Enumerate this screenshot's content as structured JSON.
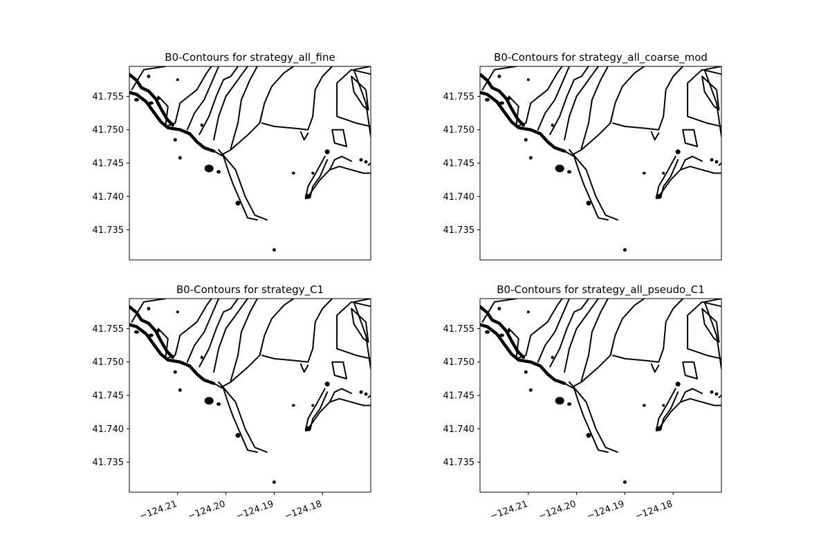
{
  "chart_data": {
    "type": "contour",
    "suptitle_note": "",
    "xlim": [
      -124.22,
      -124.17
    ],
    "ylim": [
      41.7305,
      41.7595
    ],
    "xticks": [
      -124.21,
      -124.2,
      -124.19,
      -124.18
    ],
    "xtick_labels": [
      "−124.21",
      "−124.20",
      "−124.19",
      "−124.18"
    ],
    "yticks": [
      41.735,
      41.74,
      41.745,
      41.75,
      41.755
    ],
    "ytick_labels": [
      "41.735",
      "41.740",
      "41.745",
      "41.750",
      "41.755"
    ],
    "panels": [
      {
        "title": "B0-Contours for  strategy_all_fine",
        "show_xticks": false
      },
      {
        "title": "B0-Contours for  strategy_all_coarse_mod",
        "show_xticks": false
      },
      {
        "title": "B0-Contours for  strategy_C1",
        "show_xticks": true
      },
      {
        "title": "B0-Contours for  strategy_all_pseudo_C1",
        "show_xticks": true
      }
    ],
    "contours": [
      {
        "style": "heavy",
        "points": [
          [
            -124.22,
            41.7556
          ],
          [
            -124.2185,
            41.7553
          ],
          [
            -124.2165,
            41.7542
          ],
          [
            -124.215,
            41.7527
          ],
          [
            -124.2135,
            41.7512
          ],
          [
            -124.212,
            41.7503
          ],
          [
            -124.2095,
            41.75
          ],
          [
            -124.2075,
            41.7494
          ],
          [
            -124.206,
            41.7482
          ],
          [
            -124.2045,
            41.7473
          ],
          [
            -124.2025,
            41.7468
          ]
        ]
      },
      {
        "style": "heavy",
        "points": [
          [
            -124.22,
            41.7583
          ],
          [
            -124.2185,
            41.7574
          ],
          [
            -124.2175,
            41.7563
          ],
          [
            -124.216,
            41.7558
          ],
          [
            -124.2145,
            41.7546
          ],
          [
            -124.2135,
            41.7532
          ],
          [
            -124.2122,
            41.7516
          ],
          [
            -124.211,
            41.7507
          ]
        ]
      },
      {
        "style": "normal",
        "points": [
          [
            -124.2025,
            41.7468
          ],
          [
            -124.2005,
            41.746
          ],
          [
            -124.1995,
            41.7438
          ],
          [
            -124.1985,
            41.7418
          ],
          [
            -124.1955,
            41.7368
          ],
          [
            -124.1935,
            41.7365
          ]
        ]
      },
      {
        "style": "normal",
        "points": [
          [
            -124.2015,
            41.747
          ],
          [
            -124.198,
            41.744
          ],
          [
            -124.196,
            41.74
          ],
          [
            -124.194,
            41.7372
          ],
          [
            -124.1915,
            41.7365
          ]
        ]
      },
      {
        "style": "normal",
        "points": [
          [
            -124.201,
            41.7462
          ],
          [
            -124.199,
            41.747
          ],
          [
            -124.1955,
            41.7492
          ],
          [
            -124.193,
            41.751
          ],
          [
            -124.1925,
            41.7525
          ]
        ]
      },
      {
        "style": "normal",
        "points": [
          [
            -124.2195,
            41.756
          ],
          [
            -124.217,
            41.759
          ],
          [
            -124.2125,
            41.7595
          ]
        ]
      },
      {
        "style": "normal",
        "points": [
          [
            -124.214,
            41.755
          ],
          [
            -124.212,
            41.7535
          ],
          [
            -124.2125,
            41.7505
          ],
          [
            -124.2105,
            41.751
          ],
          [
            -124.2095,
            41.754
          ],
          [
            -124.206,
            41.756
          ],
          [
            -124.204,
            41.7585
          ],
          [
            -124.203,
            41.7595
          ]
        ]
      },
      {
        "style": "normal",
        "points": [
          [
            -124.208,
            41.75
          ],
          [
            -124.2065,
            41.7525
          ],
          [
            -124.2045,
            41.7545
          ],
          [
            -124.203,
            41.757
          ],
          [
            -124.2015,
            41.7595
          ]
        ]
      },
      {
        "style": "normal",
        "points": [
          [
            -124.2055,
            41.7493
          ],
          [
            -124.2035,
            41.752
          ],
          [
            -124.202,
            41.755
          ],
          [
            -124.2005,
            41.7575
          ],
          [
            -124.199,
            41.758
          ],
          [
            -124.1975,
            41.7595
          ]
        ]
      },
      {
        "style": "normal",
        "points": [
          [
            -124.2025,
            41.7485
          ],
          [
            -124.2015,
            41.752
          ],
          [
            -124.2,
            41.755
          ],
          [
            -124.1985,
            41.7565
          ],
          [
            -124.1965,
            41.7585
          ],
          [
            -124.1955,
            41.7595
          ]
        ]
      },
      {
        "style": "normal",
        "points": [
          [
            -124.199,
            41.7472
          ],
          [
            -124.1975,
            41.751
          ],
          [
            -124.1968,
            41.7545
          ],
          [
            -124.195,
            41.7575
          ],
          [
            -124.1935,
            41.7595
          ]
        ]
      },
      {
        "style": "normal",
        "points": [
          [
            -124.193,
            41.751
          ],
          [
            -124.192,
            41.754
          ],
          [
            -124.1905,
            41.7565
          ],
          [
            -124.188,
            41.7585
          ],
          [
            -124.186,
            41.7595
          ]
        ]
      },
      {
        "style": "normal",
        "points": [
          [
            -124.1925,
            41.751
          ],
          [
            -124.19,
            41.7505
          ],
          [
            -124.1855,
            41.7502
          ],
          [
            -124.183,
            41.75
          ],
          [
            -124.182,
            41.752
          ],
          [
            -124.1815,
            41.756
          ],
          [
            -124.18,
            41.758
          ],
          [
            -124.178,
            41.7595
          ]
        ]
      },
      {
        "style": "normal",
        "points": [
          [
            -124.1845,
            41.7497
          ],
          [
            -124.1838,
            41.7485
          ],
          [
            -124.183,
            41.7495
          ]
        ]
      },
      {
        "style": "normal",
        "points": [
          [
            -124.178,
            41.75
          ],
          [
            -124.1775,
            41.748
          ],
          [
            -124.175,
            41.7475
          ],
          [
            -124.1757,
            41.75
          ],
          [
            -124.178,
            41.75
          ]
        ]
      },
      {
        "style": "normal",
        "points": [
          [
            -124.1705,
            41.753
          ],
          [
            -124.171,
            41.756
          ],
          [
            -124.174,
            41.758
          ],
          [
            -124.1735,
            41.7557
          ],
          [
            -124.1715,
            41.7535
          ],
          [
            -124.1705,
            41.753
          ]
        ]
      },
      {
        "style": "normal",
        "points": [
          [
            -124.17,
            41.749
          ],
          [
            -124.171,
            41.754
          ],
          [
            -124.1735,
            41.759
          ],
          [
            -124.17,
            41.7595
          ]
        ]
      },
      {
        "style": "normal",
        "points": [
          [
            -124.168,
            41.758
          ],
          [
            -124.174,
            41.759
          ],
          [
            -124.177,
            41.757
          ],
          [
            -124.177,
            41.752
          ],
          [
            -124.173,
            41.751
          ],
          [
            -124.17,
            41.7505
          ]
        ]
      },
      {
        "style": "normal",
        "points": [
          [
            -124.179,
            41.7455
          ],
          [
            -124.1805,
            41.743
          ],
          [
            -124.182,
            41.7415
          ],
          [
            -124.1825,
            41.74
          ],
          [
            -124.1835,
            41.7397
          ],
          [
            -124.183,
            41.7415
          ],
          [
            -124.181,
            41.744
          ],
          [
            -124.1795,
            41.746
          ]
        ]
      },
      {
        "style": "normal",
        "points": [
          [
            -124.183,
            41.74
          ],
          [
            -124.1805,
            41.7425
          ],
          [
            -124.1785,
            41.744
          ],
          [
            -124.1765,
            41.7445
          ],
          [
            -124.174,
            41.744
          ],
          [
            -124.1715,
            41.7435
          ],
          [
            -124.17,
            41.7435
          ]
        ]
      },
      {
        "style": "normal",
        "points": [
          [
            -124.1785,
            41.744
          ],
          [
            -124.1775,
            41.7455
          ],
          [
            -124.176,
            41.746
          ],
          [
            -124.174,
            41.7453
          ]
        ]
      },
      {
        "style": "normal",
        "points": [
          [
            -124.1705,
            41.7447
          ],
          [
            -124.17,
            41.745
          ]
        ]
      }
    ],
    "blobs": [
      [
        -124.2035,
        41.7442,
        6,
        5
      ],
      [
        -124.1975,
        41.739,
        3,
        3
      ],
      [
        -124.19,
        41.732,
        2,
        2
      ],
      [
        -124.2015,
        41.7437,
        2.5,
        2
      ],
      [
        -124.183,
        41.74,
        4,
        3
      ],
      [
        -124.179,
        41.7467,
        3,
        3
      ],
      [
        -124.2185,
        41.7545,
        3,
        2
      ],
      [
        -124.2155,
        41.754,
        3,
        2
      ],
      [
        -124.214,
        41.7547,
        2,
        2
      ],
      [
        -124.2105,
        41.7485,
        2,
        2
      ],
      [
        -124.2095,
        41.7458,
        2,
        2
      ],
      [
        -124.205,
        41.7507,
        1.5,
        2
      ],
      [
        -124.216,
        41.758,
        2,
        2
      ],
      [
        -124.21,
        41.7575,
        1.5,
        1.5
      ],
      [
        -124.186,
        41.7435,
        2,
        1.5
      ],
      [
        -124.182,
        41.7435,
        1.5,
        1.5
      ],
      [
        -124.171,
        41.7452,
        2,
        2
      ],
      [
        -124.172,
        41.7455,
        2,
        2
      ]
    ]
  }
}
